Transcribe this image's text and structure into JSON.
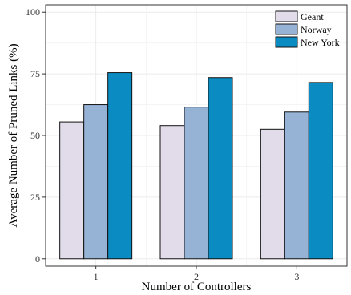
{
  "chart_data": {
    "type": "bar",
    "categories": [
      "1",
      "2",
      "3"
    ],
    "series": [
      {
        "name": "Geant",
        "values": [
          55.5,
          54.0,
          52.5
        ],
        "color": "#e2dcea"
      },
      {
        "name": "Norway",
        "values": [
          62.5,
          61.5,
          59.5
        ],
        "color": "#96b3d6"
      },
      {
        "name": "New York",
        "values": [
          75.5,
          73.5,
          71.5
        ],
        "color": "#0a8bc1"
      }
    ],
    "title": "",
    "xlabel": "Number of Controllers",
    "ylabel": "Average Number of Pruned Links (%)",
    "ylim": [
      -3,
      103
    ],
    "yticks": [
      0,
      25,
      50,
      75,
      100
    ],
    "grid": true,
    "legend_position": "top-right"
  }
}
